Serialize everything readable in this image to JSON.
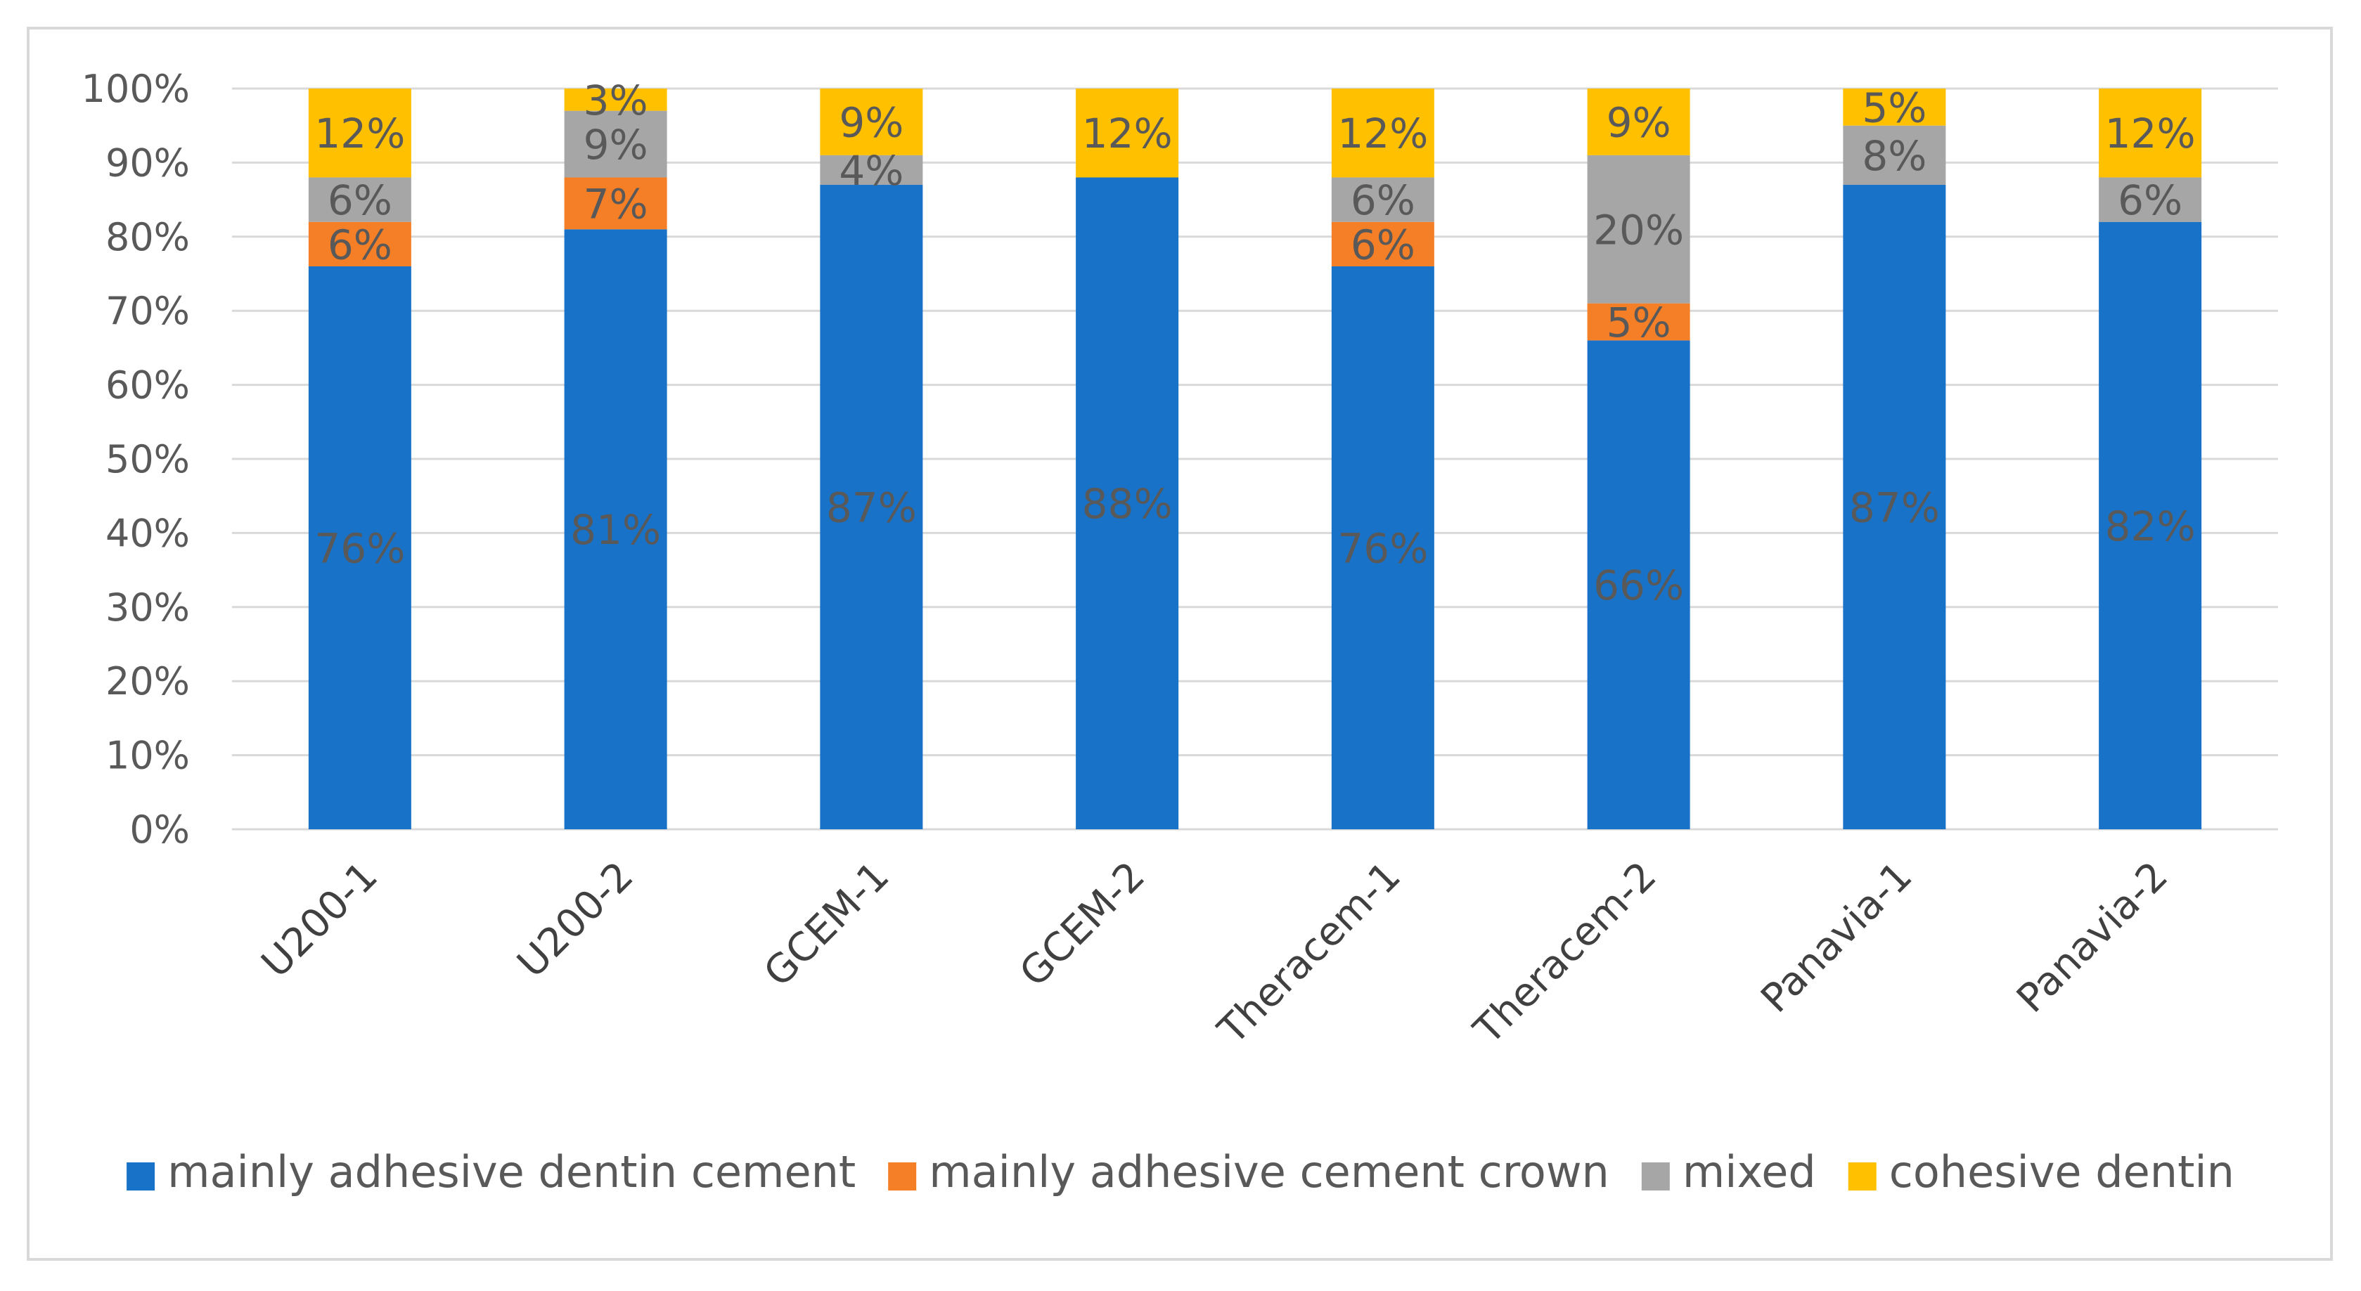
{
  "chart_data": {
    "type": "bar",
    "stacked": true,
    "percent": true,
    "title": "",
    "xlabel": "",
    "ylabel": "",
    "ylim": [
      0,
      100
    ],
    "yticks": [
      "0%",
      "10%",
      "20%",
      "30%",
      "40%",
      "50%",
      "60%",
      "70%",
      "80%",
      "90%",
      "100%"
    ],
    "grid": true,
    "legend_position": "bottom",
    "categories": [
      "U200-1",
      "U200-2",
      "GCEM-1",
      "GCEM-2",
      "Theracem-1",
      "Theracem-2",
      "Panavia-1",
      "Panavia-2"
    ],
    "series": [
      {
        "name": "mainly adhesive dentin cement",
        "color": "#1872c8",
        "values": [
          76,
          81,
          87,
          88,
          76,
          66,
          87,
          82
        ],
        "labels": [
          "76%",
          "81%",
          "87%",
          "88%",
          "76%",
          "66%",
          "87%",
          "82%"
        ]
      },
      {
        "name": "mainly adhesive cement crown",
        "color": "#f57f27",
        "values": [
          6,
          7,
          0,
          0,
          6,
          5,
          0,
          0
        ],
        "labels": [
          "6%",
          "7%",
          "",
          "",
          "6%",
          "5%",
          "",
          ""
        ]
      },
      {
        "name": "mixed",
        "color": "#a6a6a6",
        "values": [
          6,
          9,
          4,
          0,
          6,
          20,
          8,
          6
        ],
        "labels": [
          "6%",
          "9%",
          "4%",
          "",
          "6%",
          "20%",
          "8%",
          "6%"
        ]
      },
      {
        "name": "cohesive dentin",
        "color": "#ffc000",
        "values": [
          12,
          3,
          9,
          12,
          12,
          9,
          5,
          12
        ],
        "labels": [
          "12%",
          "3%",
          "9%",
          "12%",
          "12%",
          "9%",
          "5%",
          "12%"
        ]
      }
    ]
  }
}
